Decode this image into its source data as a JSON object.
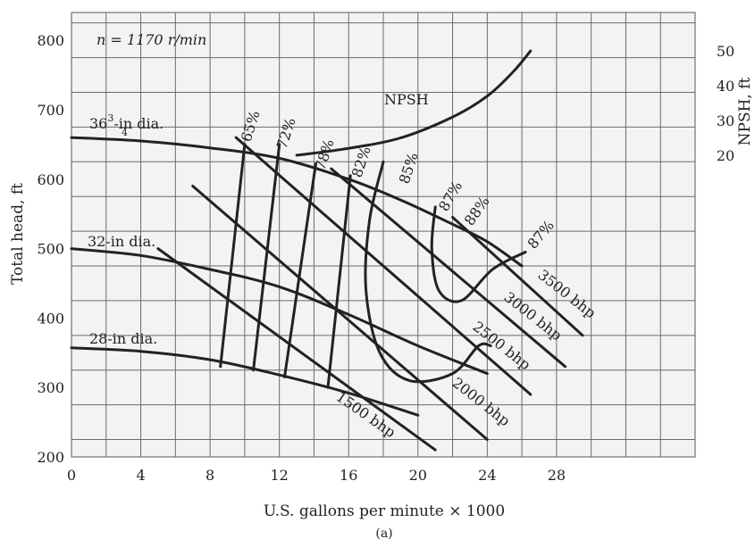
{
  "chart_data": {
    "type": "line",
    "annotation_rpm": "n = 1170 r/min",
    "xlabel": "U.S. gallons per minute × 1000",
    "ylabel": "Total head, ft",
    "y2label": "NPSH, ft",
    "xlim": [
      0,
      36
    ],
    "ylim": [
      200,
      840
    ],
    "y2lim": [
      0,
      55
    ],
    "xticks": [
      "0",
      "4",
      "8",
      "12",
      "16",
      "20",
      "24",
      "28"
    ],
    "yticks": [
      "200",
      "300",
      "400",
      "500",
      "600",
      "700",
      "800"
    ],
    "y2ticks": [
      "20",
      "30",
      "40",
      "50"
    ],
    "grid": true,
    "head_curves": [
      {
        "name": "36 3/4-in dia.",
        "label_main": "36",
        "label_num": "3",
        "label_den": "4",
        "label_tail": "-in dia.",
        "x": [
          0,
          4,
          8,
          12,
          16,
          19,
          22,
          24,
          26
        ],
        "y": [
          660,
          655,
          645,
          630,
          600,
          570,
          535,
          510,
          475
        ]
      },
      {
        "name": "32-in dia.",
        "label": "32-in dia.",
        "x": [
          0,
          4,
          8,
          12,
          16,
          20,
          24
        ],
        "y": [
          500,
          490,
          470,
          445,
          405,
          360,
          320
        ]
      },
      {
        "name": "28-in dia.",
        "label": "28-in dia.",
        "x": [
          0,
          4,
          8,
          12,
          16,
          20
        ],
        "y": [
          357,
          352,
          340,
          318,
          292,
          260
        ]
      }
    ],
    "npsh_curve": {
      "name": "NPSH",
      "label": "NPSH",
      "x": [
        13,
        16,
        19,
        22,
        24,
        25.5,
        26.5
      ],
      "y2": [
        20,
        22,
        25,
        31,
        37,
        44,
        50
      ]
    },
    "efficiency_lines": [
      {
        "label": "65%",
        "points": [
          [
            10,
            650
          ],
          [
            8.6,
            330
          ]
        ]
      },
      {
        "label": "72%",
        "points": [
          [
            12,
            650
          ],
          [
            10.5,
            325
          ]
        ]
      },
      {
        "label": "78%",
        "points": [
          [
            14.1,
            622
          ],
          [
            12.3,
            315
          ]
        ]
      },
      {
        "label": "82%",
        "points": [
          [
            16.1,
            605
          ],
          [
            14.8,
            300
          ]
        ]
      }
    ],
    "efficiency_loops": [
      {
        "label": "85%",
        "points": [
          [
            18,
            625
          ],
          [
            17.2,
            540
          ],
          [
            17,
            440
          ],
          [
            17.8,
            350
          ],
          [
            19.5,
            310
          ],
          [
            22,
            320
          ],
          [
            23.5,
            360
          ],
          [
            24.2,
            360
          ]
        ]
      },
      {
        "label": "87%",
        "points": [
          [
            21,
            560
          ],
          [
            20.8,
            500
          ],
          [
            21.2,
            440
          ],
          [
            22.5,
            425
          ],
          [
            24.3,
            470
          ],
          [
            26.2,
            495
          ]
        ]
      }
    ],
    "efficiency_point_labels": [
      "87%",
      "88%",
      "87%"
    ],
    "power_lines": [
      {
        "name": "1500 bhp",
        "label": "1500 bhp",
        "points": [
          [
            5,
            500
          ],
          [
            21,
            210
          ]
        ]
      },
      {
        "name": "2000 bhp",
        "label": "2000 bhp",
        "points": [
          [
            7,
            590
          ],
          [
            24,
            225
          ]
        ]
      },
      {
        "name": "2500 bhp",
        "label": "2500 bhp",
        "points": [
          [
            9.5,
            660
          ],
          [
            26.5,
            290
          ]
        ]
      },
      {
        "name": "3000 bhp",
        "label": "3000 bhp",
        "points": [
          [
            15,
            615
          ],
          [
            28.5,
            330
          ]
        ]
      },
      {
        "name": "3500 bhp",
        "label": "3500 bhp",
        "points": [
          [
            22,
            545
          ],
          [
            29.5,
            375
          ]
        ]
      }
    ],
    "footer": "(a)"
  }
}
